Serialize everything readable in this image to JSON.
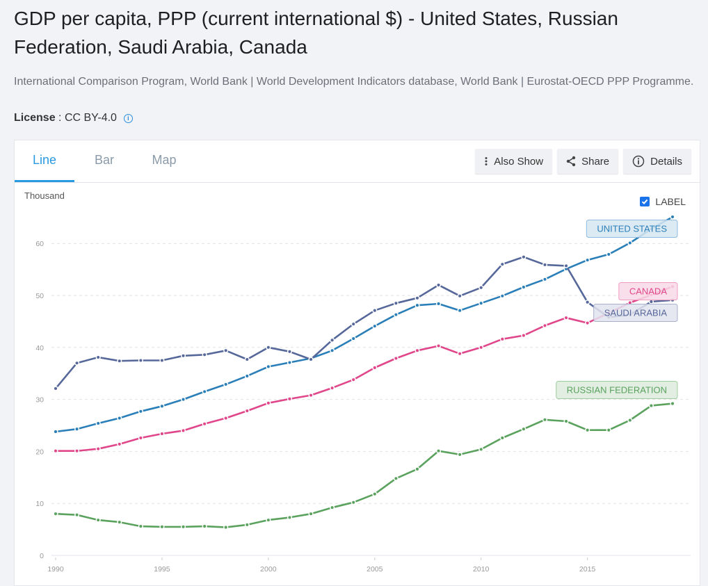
{
  "header": {
    "title": "GDP per capita, PPP (current international $) - United States, Russian Federation, Saudi Arabia, Canada",
    "source": "International Comparison Program, World Bank | World Development Indicators database, World Bank | Eurostat-OECD PPP Programme.",
    "license_label": "License",
    "license_sep": " : ",
    "license_value": "CC BY-4.0",
    "license_icon": "info-icon"
  },
  "tabs": [
    {
      "label": "Line",
      "active": true
    },
    {
      "label": "Bar",
      "active": false
    },
    {
      "label": "Map",
      "active": false
    }
  ],
  "actions": {
    "also_show": {
      "label": "Also Show",
      "icon": "more-vertical-icon"
    },
    "share": {
      "label": "Share",
      "icon": "share-icon"
    },
    "details": {
      "label": "Details",
      "icon": "info-icon"
    }
  },
  "label_toggle": {
    "label": "LABEL",
    "checked": true
  },
  "chart_data": {
    "type": "line",
    "title": "GDP per capita, PPP (current international $)",
    "ylabel": "Thousand",
    "xlabel": "",
    "ylim": [
      0,
      65
    ],
    "yticks": [
      0,
      10,
      20,
      30,
      40,
      50,
      60
    ],
    "xlim": [
      1990,
      2019
    ],
    "xticks": [
      1990,
      1995,
      2000,
      2005,
      2010,
      2015
    ],
    "grid": true,
    "legend": "inline-labels-right",
    "x": [
      1990,
      1991,
      1992,
      1993,
      1994,
      1995,
      1996,
      1997,
      1998,
      1999,
      2000,
      2001,
      2002,
      2003,
      2004,
      2005,
      2006,
      2007,
      2008,
      2009,
      2010,
      2011,
      2012,
      2013,
      2014,
      2015,
      2016,
      2017,
      2018,
      2019
    ],
    "series": [
      {
        "name": "UNITED STATES",
        "color": "#2b7fb8",
        "label_bg": "#d6e6f2",
        "label_border": "#8fbbe0",
        "values": [
          23.8,
          24.3,
          25.4,
          26.4,
          27.7,
          28.7,
          30.0,
          31.5,
          32.9,
          34.5,
          36.3,
          37.1,
          37.9,
          39.4,
          41.7,
          44.1,
          46.3,
          48.1,
          48.4,
          47.1,
          48.5,
          49.9,
          51.6,
          53.1,
          55.1,
          56.8,
          57.9,
          60.1,
          62.8,
          65.1
        ]
      },
      {
        "name": "CANADA",
        "color": "#e0468a",
        "label_bg": "#f8d9e6",
        "label_border": "#ef9cbf",
        "values": [
          20.1,
          20.1,
          20.5,
          21.4,
          22.6,
          23.4,
          24.0,
          25.3,
          26.4,
          27.8,
          29.3,
          30.1,
          30.8,
          32.2,
          33.8,
          36.1,
          37.9,
          39.4,
          40.3,
          38.8,
          40.0,
          41.6,
          42.3,
          44.2,
          45.7,
          44.7,
          46.6,
          48.6,
          50.1,
          51.7
        ]
      },
      {
        "name": "SAUDI ARABIA",
        "color": "#56689a",
        "label_bg": "#e2e4ef",
        "label_border": "#a9b0cc",
        "values": [
          32.1,
          37.0,
          38.1,
          37.4,
          37.5,
          37.5,
          38.4,
          38.6,
          39.4,
          37.7,
          40.0,
          39.2,
          37.7,
          41.4,
          44.5,
          47.1,
          48.5,
          49.5,
          52.0,
          49.9,
          51.5,
          56.0,
          57.4,
          55.9,
          55.7,
          48.7,
          45.8,
          46.3,
          48.8,
          49.1
        ]
      },
      {
        "name": "RUSSIAN FEDERATION",
        "color": "#5aa25e",
        "label_bg": "#dcebdc",
        "label_border": "#9fcc9f",
        "values": [
          8.0,
          7.8,
          6.8,
          6.4,
          5.6,
          5.5,
          5.5,
          5.6,
          5.4,
          5.9,
          6.8,
          7.3,
          8.0,
          9.2,
          10.2,
          11.8,
          14.8,
          16.6,
          20.1,
          19.4,
          20.4,
          22.6,
          24.3,
          26.1,
          25.8,
          24.1,
          24.1,
          26.0,
          28.8,
          29.2
        ]
      }
    ]
  }
}
